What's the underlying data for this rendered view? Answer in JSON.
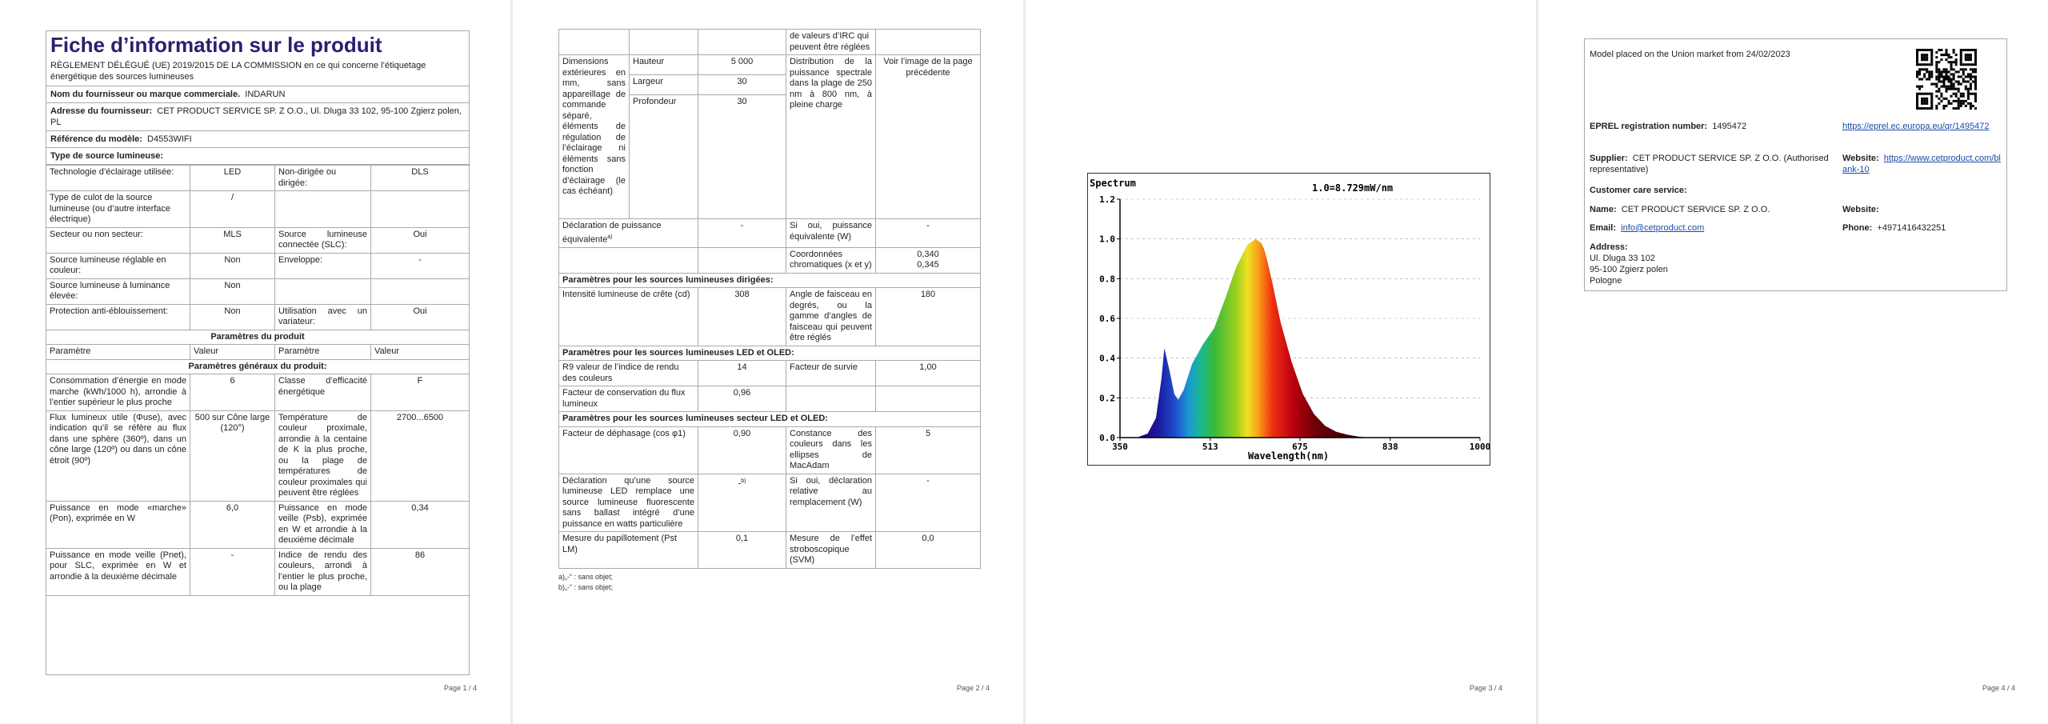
{
  "page1": {
    "title": "Fiche d’information sur le produit",
    "regulation": "RÈGLEMENT DÉLÉGUÉ (UE) 2019/2015 DE LA COMMISSION en ce qui concerne l’étiquetage énergétique des sources lumineuses",
    "supplier_label": "Nom du fournisseur ou marque commerciale.",
    "supplier_value": "INDARUN",
    "address_label": "Adresse du fournisseur:",
    "address_value": "CET PRODUCT SERVICE SP. Z O.O., Ul. Dluga 33 102, 95-100 Zgierz polen, PL",
    "model_label": "Référence du modèle:",
    "model_value": "D4553WIFI",
    "source_type_label": "Type de source lumineuse:",
    "tech_label": "Technologie d’éclairage utilisée:",
    "tech_value": "LED",
    "nondir_label": "Non-dirigée ou dirigée:",
    "nondir_value": "DLS",
    "cap_label": "Type de culot de la source lumineuse (ou d’autre interface électrique)",
    "cap_value": "/",
    "mains_label": "Secteur ou non secteur:",
    "mains_value": "MLS",
    "connected_label": "Source lumineuse connectée (SLC):",
    "connected_value": "Oui",
    "colour_label": "Source lumineuse réglable en couleur:",
    "colour_value": "Non",
    "envelope_label": "Enveloppe:",
    "envelope_value": "-",
    "highlum_label": "Source lumineuse à luminance élevée:",
    "highlum_value": "Non",
    "glare_label": "Protection anti-éblouissement:",
    "glare_value": "Non",
    "dimmer_label": "Utilisation avec un variateur:",
    "dimmer_value": "Oui",
    "params_header": "Paramètres du produit",
    "col_param": "Paramètre",
    "col_value": "Valeur",
    "general_header": "Paramètres généraux du produit:",
    "energy_label": "Consommation d’énergie en mode marche (kWh/1000 h), arrondie à l’entier supérieur le plus proche",
    "energy_value": "6",
    "class_label": "Classe d’efficacité énergétique",
    "class_value": "F",
    "flux_label": "Flux lumineux utile (Φuse), avec indication qu’il se réfère au flux dans une sphère (360º), dans un cône large (120º) ou dans un cône étroit (90º)",
    "flux_value": "500 sur Cône large (120°)",
    "cct_label": "Température de couleur proximale, arrondie à la centaine de K la plus proche, ou la plage de températures de couleur proximales qui peuvent être réglées",
    "cct_value": "2700...6500",
    "power_on_label": "Puissance en mode «marche» (Pon), exprimée en W",
    "power_on_value": "6,0",
    "standby_label": "Puissance en mode veille (Psb), exprimée en W et arrondie à la deuxième décimale",
    "standby_value": "0,34",
    "netstandby_label": "Puissance en mode veille (Pnet), pour SLC, exprimée en W et arrondie à la deuxième décimale",
    "netstandby_value": "-",
    "cri_label": "Indice de rendu des couleurs, arrondi à l’entier le plus proche, ou la plage",
    "cri_value": "86",
    "page_num": "Page 1 / 4"
  },
  "page2": {
    "cri_cont": "de valeurs d’IRC qui peuvent être réglées",
    "dims_label": "Dimensions extérieures en mm, sans appareillage de commande séparé, éléments de régulation de l’éclairage ni éléments sans fonction d’éclairage (le cas échéant)",
    "height_label": "Hauteur",
    "height_value": "5 000",
    "width_label": "Largeur",
    "width_value": "30",
    "depth_label": "Profondeur",
    "depth_value": "30",
    "spd_label": "Distribution de la puissance spectrale dans la plage de 250 nm à 800 nm, à pleine charge",
    "spd_value": "Voir l’image de la page précédente",
    "equiv_label": "Déclaration de puissance équivalente",
    "equiv_note": "a)",
    "equiv_value": "-",
    "equiv_w_label": "Si oui, puissance équivalente (W)",
    "equiv_w_value": "-",
    "chroma_label": "Coordonnées chromatiques (x et y)",
    "chroma_x": "0,340",
    "chroma_y": "0,345",
    "directional_header": "Paramètres pour les sources lumineuses dirigées:",
    "peak_label": "Intensité lumineuse de crête (cd)",
    "peak_value": "308",
    "beam_label": "Angle de faisceau en degrés, ou la gamme d’angles de faisceau qui peuvent être réglés",
    "beam_value": "180",
    "led_header": "Paramètres pour les sources lumineuses LED et OLED:",
    "r9_label": "R9 valeur de l’indice de rendu des couleurs",
    "r9_value": "14",
    "survival_label": "Facteur de survie",
    "survival_value": "1,00",
    "lumen_label": "Facteur de conservation du flux lumineux",
    "lumen_value": "0,96",
    "mains_led_header": "Paramètres pour les sources lumineuses secteur LED et OLED:",
    "cosphi_label": "Facteur de déphasage (cos φ1)",
    "cosphi_value": "0,90",
    "macadam_label": "Constance des couleurs dans les ellipses de MacAdam",
    "macadam_value": "5",
    "replace_label": "Déclaration qu’une source lumineuse LED remplace une source lumineuse fluorescente sans ballast intégré d’une puissance en watts particulière",
    "replace_value": "-",
    "replace_note": "b)",
    "replace_w_label": "Si oui, déclaration relative au remplacement (W)",
    "replace_w_value": "-",
    "flicker_label": "Mesure du papillotement (Pst LM)",
    "flicker_value": "0,1",
    "strobo_label": "Mesure de l’effet stroboscopique (SVM)",
    "strobo_value": "0,0",
    "foot_a": "a)„-“ : sans objet;",
    "foot_b": "b)„-“ : sans objet;",
    "page_num": "Page 2 / 4"
  },
  "page3": {
    "chart_data": {
      "type": "area",
      "title": "Spectrum",
      "annotation": "1.0=8.729mW/nm",
      "xlabel": "Wavelength(nm)",
      "ylabel": "",
      "xlim": [
        350,
        1000
      ],
      "ylim": [
        0,
        1.2
      ],
      "xticks": [
        "350",
        "513",
        "675",
        "838",
        "1000"
      ],
      "yticks": [
        "0.0",
        "0.2",
        "0.4",
        "0.6",
        "0.8",
        "1.0",
        "1.2"
      ],
      "series": [
        {
          "x": [
            380,
            400,
            415,
            425,
            430,
            440,
            448,
            455,
            465,
            480,
            500,
            520,
            540,
            560,
            580,
            595,
            605,
            610,
            615,
            625,
            640,
            660,
            680,
            700,
            720,
            740,
            760,
            780,
            800
          ],
          "values": [
            0.0,
            0.02,
            0.1,
            0.3,
            0.45,
            0.33,
            0.22,
            0.19,
            0.24,
            0.37,
            0.47,
            0.55,
            0.7,
            0.86,
            0.97,
            1.0,
            0.98,
            0.95,
            0.9,
            0.78,
            0.58,
            0.38,
            0.22,
            0.12,
            0.06,
            0.03,
            0.015,
            0.005,
            0.0
          ]
        }
      ]
    },
    "page_num": "Page 3 / 4"
  },
  "page4": {
    "placed": "Model placed on the Union market from 24/02/2023",
    "eprel_label": "EPREL registration number:",
    "eprel_value": "1495472",
    "eprel_link": "https://eprel.ec.europa.eu/qr/1495472",
    "supplier_label": "Supplier:",
    "supplier_value": "CET PRODUCT SERVICE SP. Z O.O. (Authorised representative)",
    "website_label": "Website:",
    "website_value": "https://www.cetproduct.com/blank-10",
    "care_label": "Customer care service:",
    "name_label": "Name:",
    "name_value": "CET PRODUCT SERVICE SP. Z O.O.",
    "care_website_label": "Website:",
    "email_label": "Email:",
    "email_value": "info@cetproduct.com",
    "phone_label": "Phone:",
    "phone_value": "+4971416432251",
    "address_label": "Address:",
    "address_line1": "Ul. Dluga 33 102",
    "address_line2": "95-100 Zgierz polen",
    "address_line3": "Pologne",
    "qr_icon": "qr-code-icon",
    "page_num": "Page 4 / 4"
  }
}
